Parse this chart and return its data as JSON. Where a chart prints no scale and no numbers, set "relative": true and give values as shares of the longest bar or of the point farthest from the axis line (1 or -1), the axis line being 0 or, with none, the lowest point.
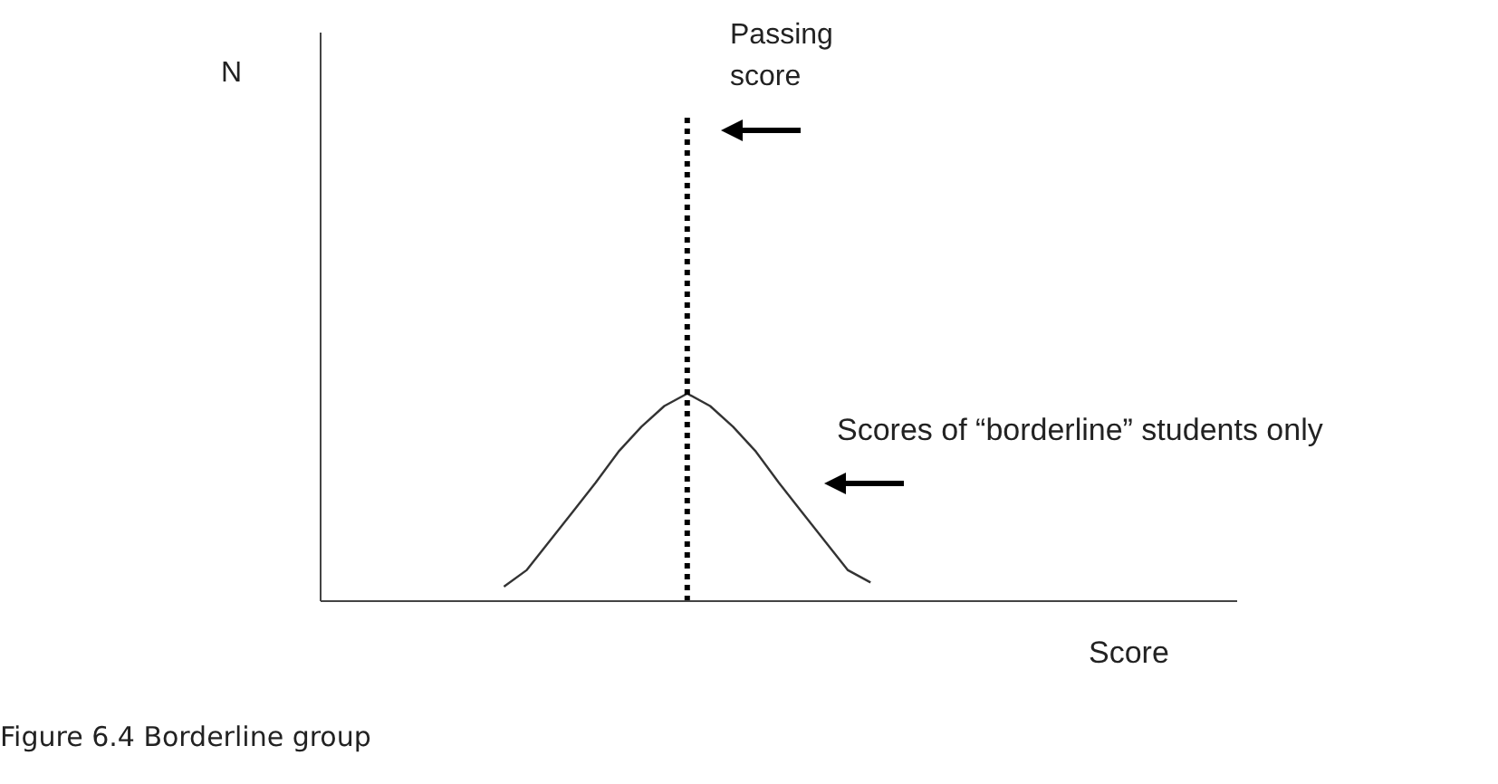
{
  "chart_data": {
    "type": "line",
    "title": "Figure 6.4 Borderline group",
    "xlabel": "Score",
    "relative": true,
    "tick_labels": false,
    "grid": false,
    "legend": false,
    "marker": "none",
    "line_style": "solid",
    "categories": [
      null,
      null,
      null,
      null,
      null,
      null,
      null,
      null,
      null,
      null,
      null,
      null,
      null,
      null,
      null,
      null,
      null,
      null,
      null,
      null,
      null,
      null,
      null,
      null,
      null,
      null,
      null,
      null,
      null,
      null,
      null,
      null,
      null,
      null,
      null,
      null,
      null,
      null,
      null,
      null,
      null
    ],
    "series": [
      {
        "color": "#333333",
        "values": [
          null,
          null,
          null,
          null,
          null,
          null,
          null,
          null,
          0.07,
          0.15,
          0.29,
          0.43,
          0.57,
          0.72,
          0.84,
          0.94,
          1,
          0.94,
          0.84,
          0.72,
          0.57,
          0.43,
          0.29,
          0.15,
          0.09,
          null,
          null,
          null,
          null,
          null,
          null,
          null,
          null,
          null,
          null,
          null,
          null,
          null,
          null,
          null,
          null
        ]
      }
    ],
    "annotations": [
      "N",
      "Passing score",
      "Scores of “borderline” students only"
    ]
  }
}
